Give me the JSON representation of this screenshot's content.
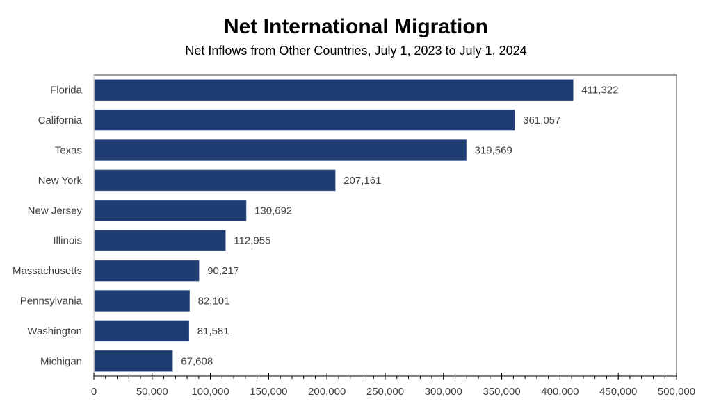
{
  "chart_data": {
    "type": "bar",
    "orientation": "horizontal",
    "title": "Net International Migration",
    "subtitle": "Net Inflows from Other Countries, July 1, 2023 to July 1, 2024",
    "categories": [
      "Florida",
      "California",
      "Texas",
      "New York",
      "New Jersey",
      "Illinois",
      "Massachusetts",
      "Pennsylvania",
      "Washington",
      "Michigan"
    ],
    "values": [
      411322,
      361057,
      319569,
      207161,
      130692,
      112955,
      90217,
      82101,
      81581,
      67608
    ],
    "value_labels": [
      "411,322",
      "361,057",
      "319,569",
      "207,161",
      "130,692",
      "112,955",
      "90,217",
      "82,101",
      "81,581",
      "67,608"
    ],
    "xlim": [
      0,
      500000
    ],
    "x_ticks": [
      0,
      50000,
      100000,
      150000,
      200000,
      250000,
      300000,
      350000,
      400000,
      450000,
      500000
    ],
    "x_tick_labels": [
      "0",
      "50,000",
      "100,000",
      "150,000",
      "200,000",
      "250,000",
      "300,000",
      "350,000",
      "400,000",
      "450,000",
      "500,000"
    ],
    "minor_tick_step": 10000,
    "xlabel": "",
    "ylabel": "",
    "grid": false,
    "bar_color": "#1f3d73"
  }
}
